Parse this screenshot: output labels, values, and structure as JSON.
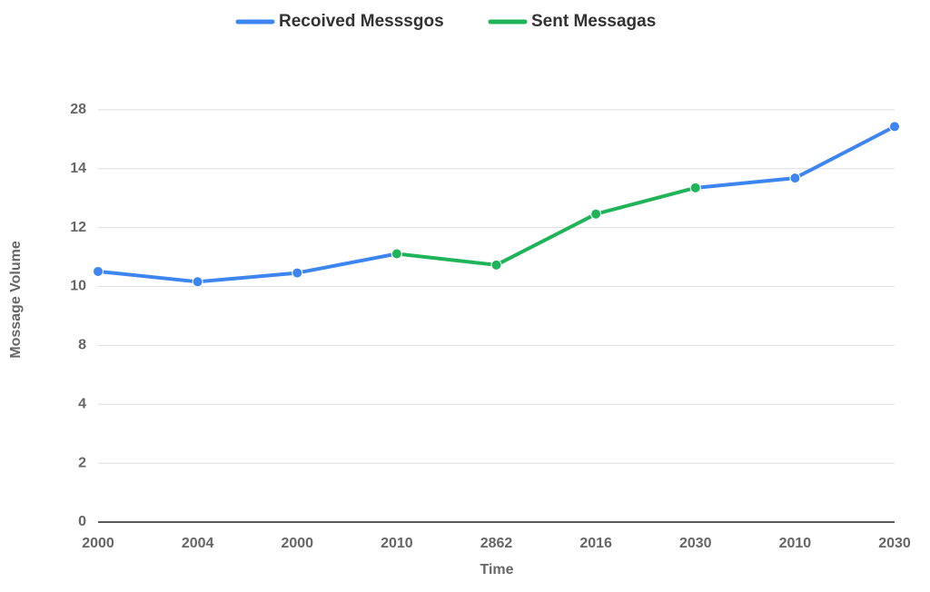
{
  "chart_data": {
    "type": "line",
    "x_label": "Time",
    "y_label": "Mossage Volume",
    "categories": [
      "2000",
      "2004",
      "2000",
      "2010",
      "2862",
      "2016",
      "2030",
      "2010",
      "2030"
    ],
    "series": [
      {
        "name": "Recoived Messsgos",
        "color": "#3d85f0",
        "values": [
          8.51,
          8.16,
          8.46,
          9.11,
          null,
          null,
          11.35,
          11.68,
          13.43
        ]
      },
      {
        "name": "Sent Messagas",
        "color": "#1fb45a",
        "values": [
          null,
          null,
          null,
          9.11,
          8.73,
          10.46,
          11.35,
          null,
          null
        ]
      }
    ],
    "ylim": [
      0,
      16
    ],
    "yticks": [
      0,
      2,
      4,
      {
        "value": 6,
        "label": "8"
      },
      {
        "value": 8,
        "label": "10"
      },
      {
        "value": 10,
        "label": "12"
      },
      {
        "value": 12,
        "label": "14"
      },
      {
        "value": 14,
        "label": "28"
      }
    ],
    "grid": true
  }
}
